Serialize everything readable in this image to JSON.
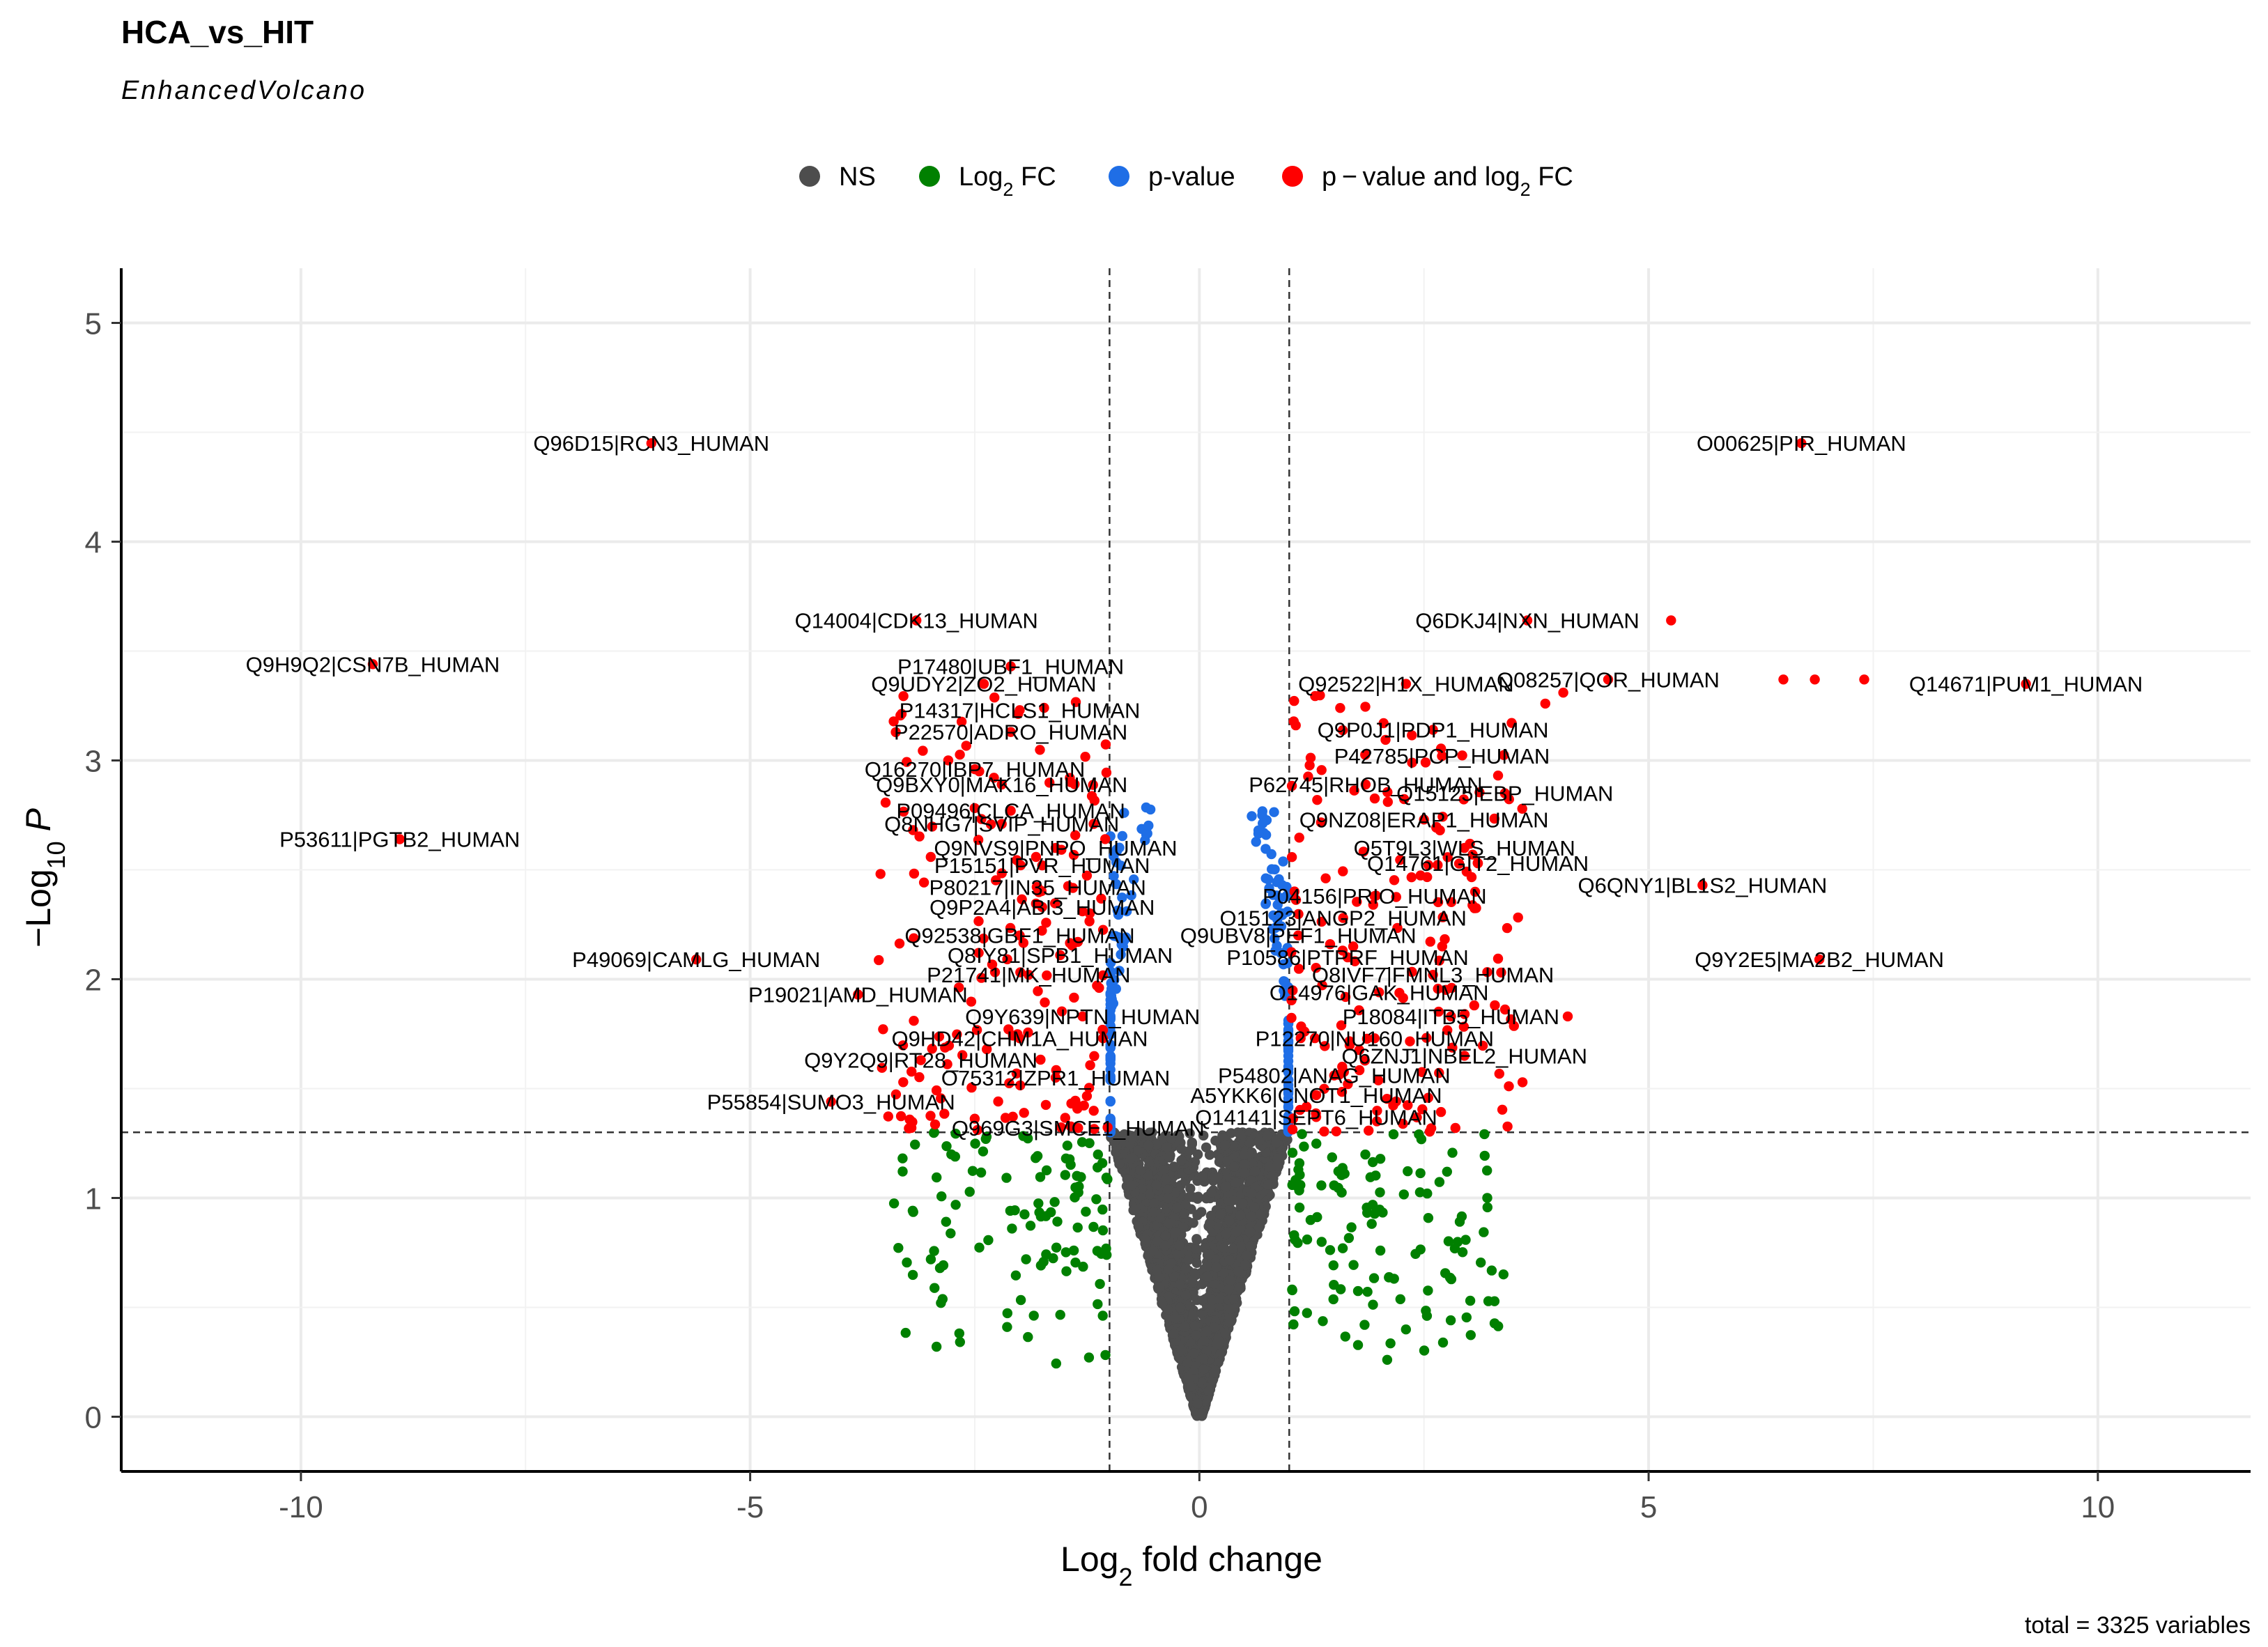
{
  "chart_data": {
    "type": "scatter",
    "title": "HCA_vs_HIT",
    "subtitle": "EnhancedVolcano",
    "xlabel": {
      "main": "Log",
      "sub": "2",
      "rest": " fold change"
    },
    "ylabel": {
      "prefix": "−Log",
      "sub": "10",
      "rest": " P"
    },
    "caption": "total = 3325 variables",
    "xlim": [
      -12.0,
      11.7
    ],
    "ylim": [
      -0.25,
      5.25
    ],
    "x_ticks": [
      -10,
      -5,
      0,
      5,
      10
    ],
    "y_ticks": [
      0,
      1,
      2,
      3,
      4,
      5
    ],
    "x_tick_labels": [
      "-10",
      "-5",
      "0",
      "5",
      "10"
    ],
    "y_tick_labels": [
      "0",
      "1",
      "2",
      "3",
      "4",
      "5"
    ],
    "fc_cutoff": 1,
    "p_cutoff_log10": 1.3,
    "legend": [
      {
        "key": "NS",
        "label": "NS",
        "color": "#4d4d4d"
      },
      {
        "key": "FC",
        "label": "Log",
        "sub": "2",
        "rest": " FC",
        "color": "#008000"
      },
      {
        "key": "P",
        "label": "p-value",
        "color": "#1f6ee6"
      },
      {
        "key": "FCP",
        "label": "p − value and log",
        "sub": "2",
        "rest": " FC",
        "color": "#ff0000"
      }
    ],
    "series": [
      {
        "name": "p-value and log2 FC (labelled)",
        "color": "#ff0000",
        "points": [
          {
            "x": -6.1,
            "y": 4.45,
            "label": "Q96D15|RCN3_HUMAN"
          },
          {
            "x": 6.7,
            "y": 4.45,
            "label": "O00625|PIR_HUMAN"
          },
          {
            "x": 5.25,
            "y": 3.64,
            "label": ""
          },
          {
            "x": 3.65,
            "y": 3.64,
            "label": "Q6DKJ4|NXN_HUMAN"
          },
          {
            "x": -3.15,
            "y": 3.64,
            "label": "Q14004|CDK13_HUMAN"
          },
          {
            "x": -9.2,
            "y": 3.44,
            "label": "Q9H9Q2|CSN7B_HUMAN"
          },
          {
            "x": 9.2,
            "y": 3.35,
            "label": "Q14671|PUM1_HUMAN"
          },
          {
            "x": 7.4,
            "y": 3.37,
            "label": ""
          },
          {
            "x": 6.85,
            "y": 3.37,
            "label": ""
          },
          {
            "x": 6.5,
            "y": 3.37,
            "label": ""
          },
          {
            "x": 4.55,
            "y": 3.37,
            "label": "Q08257|QOR_HUMAN"
          },
          {
            "x": 2.3,
            "y": 3.35,
            "label": "Q92522|H1X_HUMAN"
          },
          {
            "x": 4.05,
            "y": 3.31,
            "label": ""
          },
          {
            "x": 3.85,
            "y": 3.26,
            "label": ""
          },
          {
            "x": -2.1,
            "y": 3.43,
            "label": "P17480|UBF1_HUMAN"
          },
          {
            "x": -2.4,
            "y": 3.35,
            "label": "Q9UDY2|ZO2_HUMAN"
          },
          {
            "x": -2.0,
            "y": 3.23,
            "label": "P14317|HCLS1_HUMAN"
          },
          {
            "x": -2.1,
            "y": 3.13,
            "label": "P22570|ADRO_HUMAN"
          },
          {
            "x": 2.6,
            "y": 3.14,
            "label": "Q9P0J1|PDP1_HUMAN"
          },
          {
            "x": 2.7,
            "y": 3.02,
            "label": "P42785|PCP_HUMAN"
          },
          {
            "x": -2.5,
            "y": 2.96,
            "label": "Q16270|IBP7_HUMAN"
          },
          {
            "x": -2.2,
            "y": 2.89,
            "label": "Q9BXY0|MAK16_HUMAN"
          },
          {
            "x": 1.85,
            "y": 2.89,
            "label": "P62745|RHOB_HUMAN"
          },
          {
            "x": 3.4,
            "y": 2.85,
            "label": "Q15125|EBP_HUMAN"
          },
          {
            "x": -2.1,
            "y": 2.77,
            "label": "P09496|CLCA_HUMAN"
          },
          {
            "x": -2.2,
            "y": 2.71,
            "label": "Q8NHG7|SVIP_HUMAN"
          },
          {
            "x": 2.5,
            "y": 2.73,
            "label": "Q9NZ08|ERAP1_HUMAN"
          },
          {
            "x": -8.9,
            "y": 2.64,
            "label": "P53611|PGTB2_HUMAN"
          },
          {
            "x": -1.6,
            "y": 2.6,
            "label": "Q9NVS9|PNPO_HUMAN"
          },
          {
            "x": 2.95,
            "y": 2.6,
            "label": "Q5T9L3|WLS_HUMAN"
          },
          {
            "x": -1.75,
            "y": 2.52,
            "label": "P15151|PVR_HUMAN"
          },
          {
            "x": 3.1,
            "y": 2.53,
            "label": "Q14761|GIT2_HUMAN"
          },
          {
            "x": -1.8,
            "y": 2.42,
            "label": "P80217|IN35_HUMAN"
          },
          {
            "x": 5.6,
            "y": 2.43,
            "label": "Q6QNY1|BL1S2_HUMAN"
          },
          {
            "x": 1.95,
            "y": 2.38,
            "label": "P04156|PRIO_HUMAN"
          },
          {
            "x": -1.75,
            "y": 2.33,
            "label": "Q9P2A4|ABI3_HUMAN"
          },
          {
            "x": 1.6,
            "y": 2.28,
            "label": "O15123|ANGP2_HUMAN"
          },
          {
            "x": -2.0,
            "y": 2.2,
            "label": "Q92538|GBF1_HUMAN"
          },
          {
            "x": 1.1,
            "y": 2.2,
            "label": "Q9UBV8|PEF1_HUMAN"
          },
          {
            "x": -1.55,
            "y": 2.11,
            "label": "Q8IY81|SPB1_HUMAN"
          },
          {
            "x": 1.65,
            "y": 2.1,
            "label": "P10586|PTPRF_HUMAN"
          },
          {
            "x": -5.6,
            "y": 2.09,
            "label": "P49069|CAMLG_HUMAN"
          },
          {
            "x": 6.9,
            "y": 2.09,
            "label": "Q9Y2E5|MA2B2_HUMAN"
          },
          {
            "x": 2.6,
            "y": 2.02,
            "label": "Q8IVF7|FMNL3_HUMAN"
          },
          {
            "x": -1.9,
            "y": 2.02,
            "label": "P21741|MK_HUMAN"
          },
          {
            "x": 2.0,
            "y": 1.94,
            "label": "O14976|GAK_HUMAN"
          },
          {
            "x": -3.8,
            "y": 1.93,
            "label": "P19021|AMD_HUMAN"
          },
          {
            "x": 2.8,
            "y": 1.83,
            "label": "P18084|ITB5_HUMAN"
          },
          {
            "x": -1.3,
            "y": 1.83,
            "label": "Q9Y639|NPTN_HUMAN"
          },
          {
            "x": 4.1,
            "y": 1.83,
            "label": ""
          },
          {
            "x": -2.0,
            "y": 1.73,
            "label": "Q9HD42|CHM1A_HUMAN"
          },
          {
            "x": 1.95,
            "y": 1.73,
            "label": "P12270|NU160_HUMAN"
          },
          {
            "x": 2.95,
            "y": 1.65,
            "label": "Q6ZNJ1|NBEL2_HUMAN"
          },
          {
            "x": -3.1,
            "y": 1.63,
            "label": "Q9Y2Q9|RT28_HUMAN"
          },
          {
            "x": 1.5,
            "y": 1.56,
            "label": "P54802|ANAG_HUMAN"
          },
          {
            "x": -1.6,
            "y": 1.55,
            "label": "O75312|ZPR1_HUMAN"
          },
          {
            "x": 1.3,
            "y": 1.47,
            "label": "A5YKK6|CNOT1_HUMAN"
          },
          {
            "x": -4.1,
            "y": 1.44,
            "label": "P55854|SUMO3_HUMAN"
          },
          {
            "x": 1.3,
            "y": 1.37,
            "label": "Q14141|SEPT6_HUMAN"
          },
          {
            "x": -1.35,
            "y": 1.32,
            "label": "Q969G3|SMCE1_HUMAN"
          },
          {
            "x": 2.85,
            "y": 1.32,
            "label": ""
          }
        ]
      },
      {
        "name": "p-value and log2 FC (cluster, estimated)",
        "color": "#ff0000",
        "generated": {
          "count": 320,
          "x_abs_range": [
            1.0,
            3.6
          ],
          "y_range": [
            1.3,
            3.3
          ]
        }
      },
      {
        "name": "p-value (estimated)",
        "color": "#1f6ee6",
        "generated": {
          "count": 210,
          "x_abs_range": [
            0.45,
            1.0
          ],
          "y_range": [
            1.3,
            2.8
          ]
        }
      },
      {
        "name": "Log2 FC (estimated)",
        "color": "#008000",
        "generated": {
          "count": 230,
          "x_abs_range": [
            1.0,
            3.4
          ],
          "y_range": [
            0.2,
            1.3
          ]
        }
      },
      {
        "name": "NS (estimated)",
        "color": "#4d4d4d",
        "generated": {
          "count": 2360,
          "x_abs_range": [
            0.0,
            1.0
          ],
          "y_range": [
            0.0,
            1.3
          ]
        }
      }
    ]
  }
}
